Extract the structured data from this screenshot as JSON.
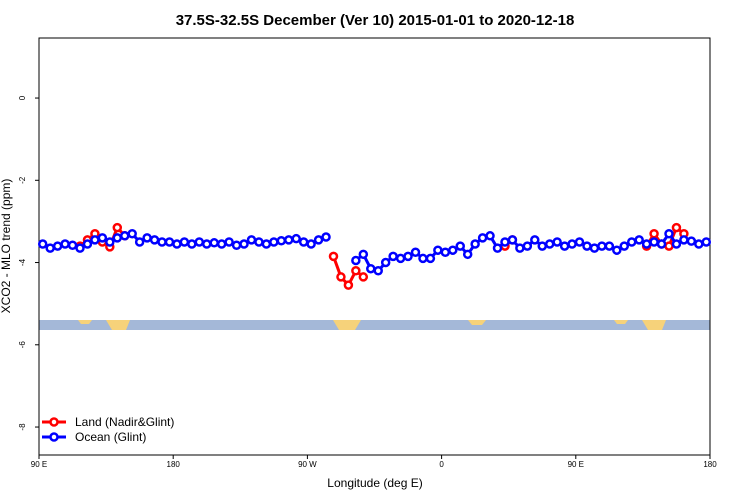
{
  "chart_data": {
    "type": "line",
    "title": "37.5S-32.5S December (Ver 10)   2015-01-01 to 2020-12-18",
    "x_label": "Longitude (deg E)",
    "y_label": "XCO2 - MLO trend (ppm)",
    "xlim": [
      90,
      540
    ],
    "ylim": [
      -8.68,
      1.46
    ],
    "xticks": [
      {
        "value": 90,
        "label": "90 E"
      },
      180,
      {
        "value": 270,
        "label": "90 W"
      },
      {
        "value": 360,
        "label": "0"
      },
      {
        "value": 450,
        "label": "90 E"
      },
      {
        "value": 540,
        "label": "180"
      }
    ],
    "yticks": [
      0,
      -2,
      -4,
      -6,
      -8
    ],
    "legend": "bottom-left",
    "series": [
      {
        "name": "Land (Nadir&Glint)",
        "color": "#ff0000",
        "x": [
          117.5,
          122.5,
          127.5,
          132.5,
          137.5,
          142.5,
          147.5,
          200,
          287.5,
          292.5,
          297.5,
          302.5,
          307.5,
          350,
          402.5,
          407.5,
          450,
          497.5,
          502.5,
          507.5,
          512.5,
          517.5,
          522.5
        ],
        "values": [
          -3.6,
          -3.45,
          -3.3,
          -3.5,
          -3.62,
          -3.15,
          -3.35,
          null,
          -3.85,
          -4.35,
          -4.55,
          -4.2,
          -4.35,
          null,
          -3.6,
          -3.45,
          null,
          -3.6,
          -3.3,
          -3.55,
          -3.6,
          -3.15,
          -3.3
        ]
      },
      {
        "name": "Ocean (Glint)",
        "color": "#0000ff",
        "x": [
          92.5,
          97.5,
          102.5,
          107.5,
          112.5,
          117.5,
          122.5,
          127.5,
          132.5,
          137.5,
          142.5,
          147.5,
          152.5,
          157.5,
          162.5,
          167.5,
          172.5,
          177.5,
          182.5,
          187.5,
          192.5,
          197.5,
          202.5,
          207.5,
          212.5,
          217.5,
          222.5,
          227.5,
          232.5,
          237.5,
          242.5,
          247.5,
          252.5,
          257.5,
          262.5,
          267.5,
          272.5,
          277.5,
          282.5,
          295,
          302.5,
          307.5,
          312.5,
          317.5,
          322.5,
          327.5,
          332.5,
          337.5,
          342.5,
          347.5,
          352.5,
          357.5,
          362.5,
          367.5,
          372.5,
          377.5,
          382.5,
          387.5,
          392.5,
          397.5,
          402.5,
          407.5,
          412.5,
          417.5,
          422.5,
          427.5,
          432.5,
          437.5,
          442.5,
          447.5,
          452.5,
          457.5,
          462.5,
          467.5,
          472.5,
          477.5,
          482.5,
          487.5,
          492.5,
          497.5,
          502.5,
          507.5,
          512.5,
          517.5,
          522.5,
          527.5,
          532.5,
          537.5
        ],
        "values": [
          -3.55,
          -3.65,
          -3.6,
          -3.55,
          -3.58,
          -3.65,
          -3.55,
          -3.45,
          -3.4,
          -3.5,
          -3.4,
          -3.35,
          -3.3,
          -3.5,
          -3.4,
          -3.45,
          -3.5,
          -3.5,
          -3.55,
          -3.5,
          -3.55,
          -3.5,
          -3.55,
          -3.52,
          -3.55,
          -3.5,
          -3.58,
          -3.55,
          -3.45,
          -3.5,
          -3.55,
          -3.5,
          -3.47,
          -3.45,
          -3.42,
          -3.5,
          -3.55,
          -3.45,
          -3.38,
          null,
          -3.95,
          -3.8,
          -4.15,
          -4.2,
          -4.0,
          -3.85,
          -3.9,
          -3.85,
          -3.75,
          -3.9,
          -3.9,
          -3.7,
          -3.75,
          -3.7,
          -3.6,
          -3.8,
          -3.55,
          -3.4,
          -3.35,
          -3.65,
          -3.5,
          -3.45,
          -3.65,
          -3.6,
          -3.45,
          -3.6,
          -3.55,
          -3.5,
          -3.6,
          -3.55,
          -3.5,
          -3.6,
          -3.65,
          -3.6,
          -3.6,
          -3.7,
          -3.6,
          -3.5,
          -3.45,
          -3.55,
          -3.5,
          -3.55,
          -3.3,
          -3.55,
          -3.45,
          -3.48,
          -3.55,
          -3.5
        ]
      }
    ]
  }
}
